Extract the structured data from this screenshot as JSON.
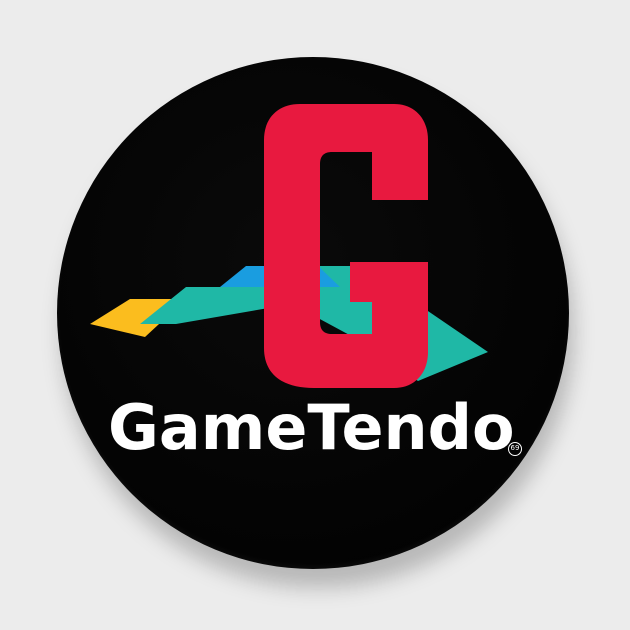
{
  "logo": {
    "letter": "G",
    "brand_name": "GameTendo",
    "badge_mark": "69",
    "colors": {
      "pin_face": "#000000",
      "letter": "#e8193f",
      "teal": "#1fb8a6",
      "yellow": "#fbbd1e",
      "blue": "#1a9de0",
      "text": "#ffffff",
      "background": "#ececec"
    }
  }
}
